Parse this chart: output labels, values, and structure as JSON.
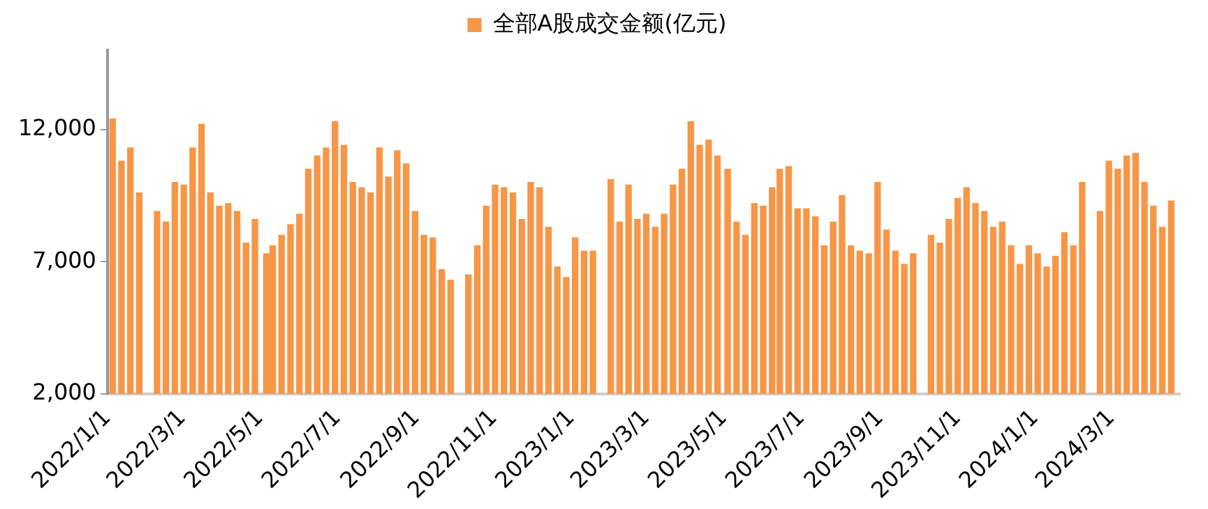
{
  "chart_data": {
    "type": "bar",
    "legend": "top",
    "x": [
      "2022-01-05",
      "2022-01-12",
      "2022-01-19",
      "2022-01-26",
      "2022-02-09",
      "2022-02-16",
      "2022-02-23",
      "2022-03-02",
      "2022-03-09",
      "2022-03-16",
      "2022-03-23",
      "2022-03-30",
      "2022-04-06",
      "2022-04-13",
      "2022-04-20",
      "2022-04-27",
      "2022-05-06",
      "2022-05-11",
      "2022-05-18",
      "2022-05-25",
      "2022-06-01",
      "2022-06-08",
      "2022-06-15",
      "2022-06-22",
      "2022-06-29",
      "2022-07-06",
      "2022-07-13",
      "2022-07-20",
      "2022-07-27",
      "2022-08-03",
      "2022-08-10",
      "2022-08-17",
      "2022-08-24",
      "2022-08-31",
      "2022-09-07",
      "2022-09-14",
      "2022-09-21",
      "2022-09-28",
      "2022-10-12",
      "2022-10-19",
      "2022-10-26",
      "2022-11-02",
      "2022-11-09",
      "2022-11-16",
      "2022-11-23",
      "2022-11-30",
      "2022-12-07",
      "2022-12-14",
      "2022-12-21",
      "2022-12-28",
      "2023-01-04",
      "2023-01-11",
      "2023-01-18",
      "2023-02-01",
      "2023-02-08",
      "2023-02-15",
      "2023-02-22",
      "2023-03-01",
      "2023-03-08",
      "2023-03-15",
      "2023-03-22",
      "2023-03-29",
      "2023-04-05",
      "2023-04-12",
      "2023-04-19",
      "2023-04-26",
      "2023-05-04",
      "2023-05-11",
      "2023-05-18",
      "2023-05-25",
      "2023-06-01",
      "2023-06-08",
      "2023-06-14",
      "2023-06-21",
      "2023-06-28",
      "2023-07-05",
      "2023-07-12",
      "2023-07-19",
      "2023-07-26",
      "2023-08-02",
      "2023-08-09",
      "2023-08-16",
      "2023-08-23",
      "2023-08-30",
      "2023-09-06",
      "2023-09-13",
      "2023-09-20",
      "2023-09-27",
      "2023-10-11",
      "2023-10-18",
      "2023-10-25",
      "2023-11-01",
      "2023-11-08",
      "2023-11-15",
      "2023-11-22",
      "2023-11-29",
      "2023-12-06",
      "2023-12-13",
      "2023-12-20",
      "2023-12-27",
      "2024-01-03",
      "2024-01-10",
      "2024-01-17",
      "2024-01-24",
      "2024-01-31",
      "2024-02-07",
      "2024-02-21",
      "2024-02-28",
      "2024-03-06",
      "2024-03-13",
      "2024-03-20",
      "2024-03-27",
      "2024-04-03",
      "2024-04-10",
      "2024-04-17"
    ],
    "series": [
      {
        "name": "全部A股成交金额(亿元)",
        "color": "#f79646",
        "values": [
          12400,
          10800,
          11300,
          9600,
          8900,
          8500,
          10000,
          9900,
          11300,
          12200,
          9600,
          9100,
          9200,
          8900,
          7700,
          8600,
          7300,
          7600,
          8000,
          8400,
          8800,
          10500,
          11000,
          11300,
          12300,
          11400,
          10000,
          9800,
          9600,
          11300,
          10200,
          11200,
          10700,
          8900,
          8000,
          7900,
          6700,
          6300,
          6500,
          7600,
          9100,
          9900,
          9800,
          9600,
          8600,
          10000,
          9800,
          8300,
          6800,
          6400,
          7900,
          7400,
          7400,
          10100,
          8500,
          9900,
          8600,
          8800,
          8300,
          8800,
          9900,
          10500,
          12300,
          11400,
          11600,
          11000,
          10500,
          8500,
          8000,
          9200,
          9100,
          9800,
          10500,
          10600,
          9000,
          9000,
          8700,
          7600,
          8500,
          9500,
          7600,
          7400,
          7300,
          10000,
          8200,
          7400,
          6900,
          7300,
          8000,
          7700,
          8600,
          9400,
          9800,
          9200,
          8900,
          8300,
          8500,
          7600,
          6900,
          7600,
          7300,
          6800,
          7200,
          8100,
          7600,
          10000,
          8900,
          10800,
          10500,
          11000,
          11100,
          10000,
          9100,
          8300,
          9300
        ]
      }
    ],
    "xlim": [
      "2022-01-01",
      "2024-04-24"
    ],
    "xticks": [
      {
        "value": "2022-01-01",
        "label": "2022/1/1"
      },
      {
        "value": "2022-03-01",
        "label": "2022/3/1"
      },
      {
        "value": "2022-05-01",
        "label": "2022/5/1"
      },
      {
        "value": "2022-07-01",
        "label": "2022/7/1"
      },
      {
        "value": "2022-09-01",
        "label": "2022/9/1"
      },
      {
        "value": "2022-11-01",
        "label": "2022/11/1"
      },
      {
        "value": "2023-01-01",
        "label": "2023/1/1"
      },
      {
        "value": "2023-03-01",
        "label": "2023/3/1"
      },
      {
        "value": "2023-05-01",
        "label": "2023/5/1"
      },
      {
        "value": "2023-07-01",
        "label": "2023/7/1"
      },
      {
        "value": "2023-09-01",
        "label": "2023/9/1"
      },
      {
        "value": "2023-11-01",
        "label": "2023/11/1"
      },
      {
        "value": "2024-01-01",
        "label": "2024/1/1"
      },
      {
        "value": "2024-03-01",
        "label": "2024/3/1"
      }
    ],
    "ylim": [
      2000,
      15000
    ],
    "yticks": [
      {
        "value": 2000,
        "label": "2,000"
      },
      {
        "value": 7000,
        "label": "7,000"
      },
      {
        "value": 12000,
        "label": "12,000"
      }
    ]
  }
}
